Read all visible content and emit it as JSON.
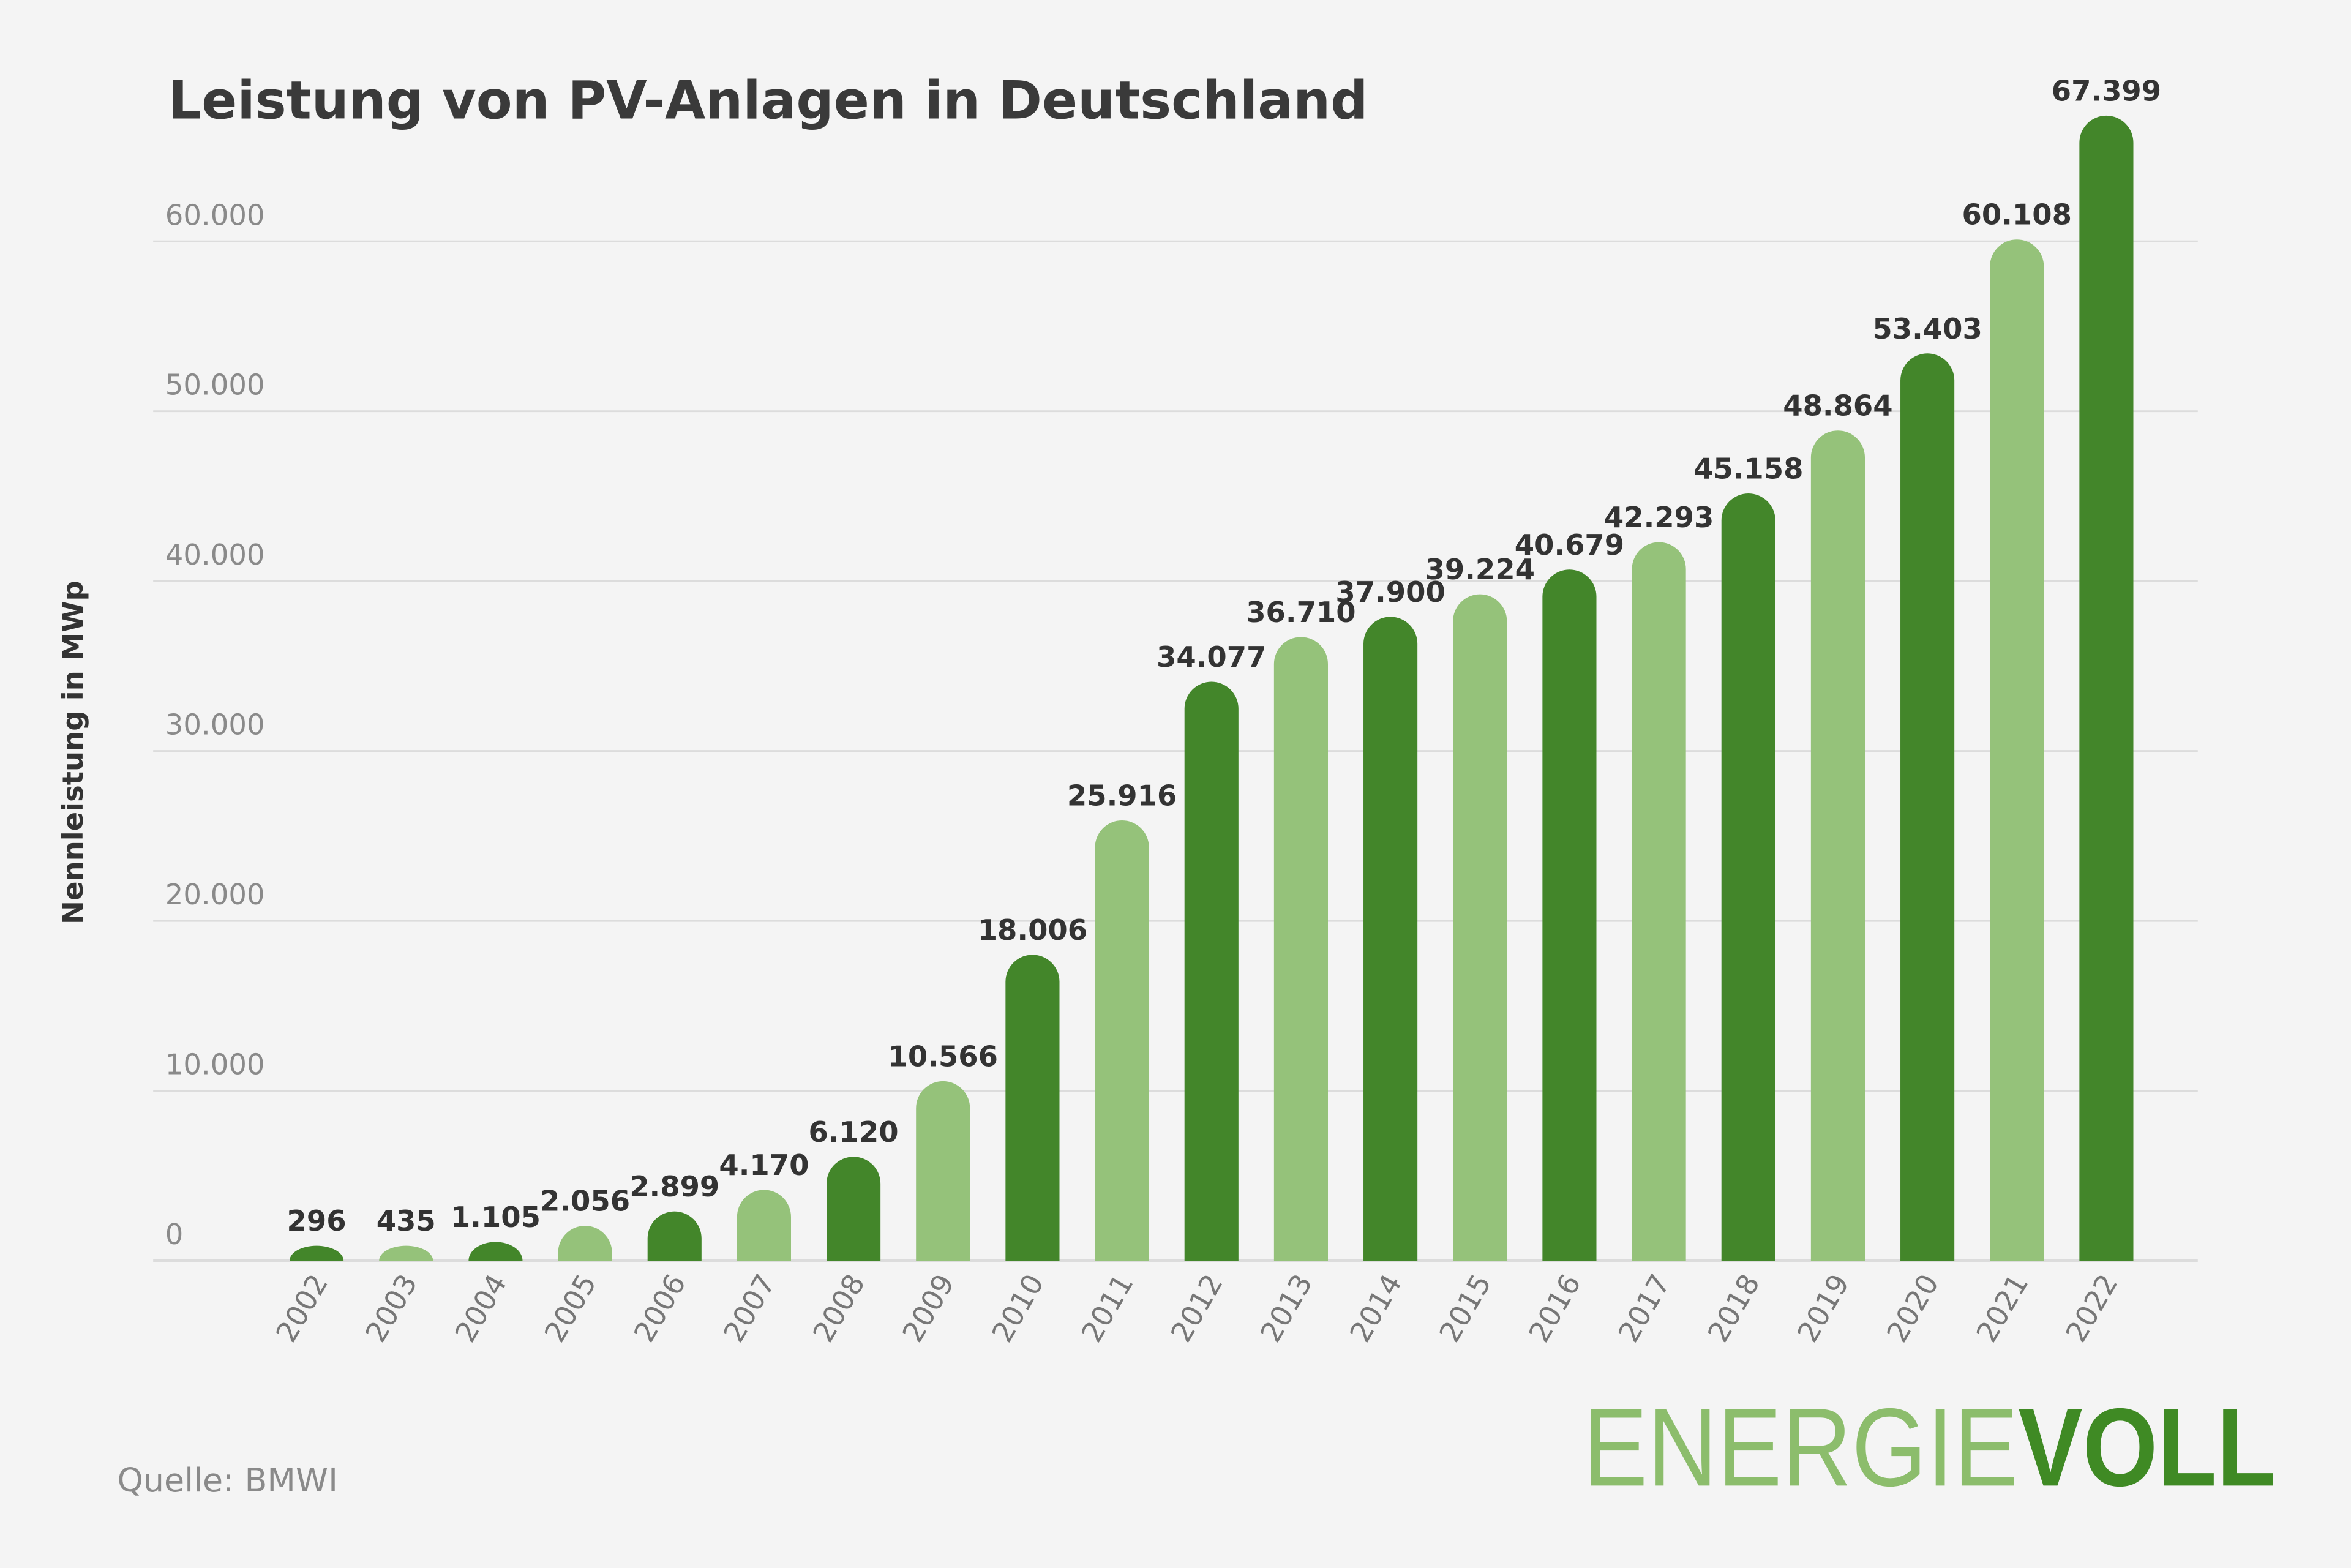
{
  "chart_data": {
    "type": "bar",
    "title": "Leistung von PV-Anlagen in Deutschland",
    "xlabel": "",
    "ylabel": "Nennleistung in MWp",
    "ylim": [
      0,
      60000
    ],
    "yticks": [
      0,
      10000,
      20000,
      30000,
      40000,
      50000,
      60000
    ],
    "ytick_labels": [
      "0",
      "10.000",
      "20.000",
      "30.000",
      "40.000",
      "50.000",
      "60.000"
    ],
    "grid": true,
    "categories": [
      "2002",
      "2003",
      "2004",
      "2005",
      "2006",
      "2007",
      "2008",
      "2009",
      "2010",
      "2011",
      "2012",
      "2013",
      "2014",
      "2015",
      "2016",
      "2017",
      "2018",
      "2019",
      "2020",
      "2021",
      "2022"
    ],
    "values": [
      296,
      435,
      1105,
      2056,
      2899,
      4170,
      6120,
      10566,
      18006,
      25916,
      34077,
      36710,
      37900,
      39224,
      40679,
      42293,
      45158,
      48864,
      53403,
      60108,
      67399
    ],
    "value_labels": [
      "296",
      "435",
      "1.105",
      "2.056",
      "2.899",
      "4.170",
      "6.120",
      "10.566",
      "18.006",
      "25.916",
      "34.077",
      "36.710",
      "37.900",
      "39.224",
      "40.679",
      "42.293",
      "45.158",
      "48.864",
      "53.403",
      "60.108",
      "67.399"
    ],
    "colors": {
      "dark": "#43862a",
      "light": "#95c27a",
      "grid": "#dcdcdc",
      "background": "#f4f4f4"
    }
  },
  "source": "Quelle: BMWI",
  "logo": {
    "part1": "ENERGIE",
    "part2": "VOLL"
  }
}
